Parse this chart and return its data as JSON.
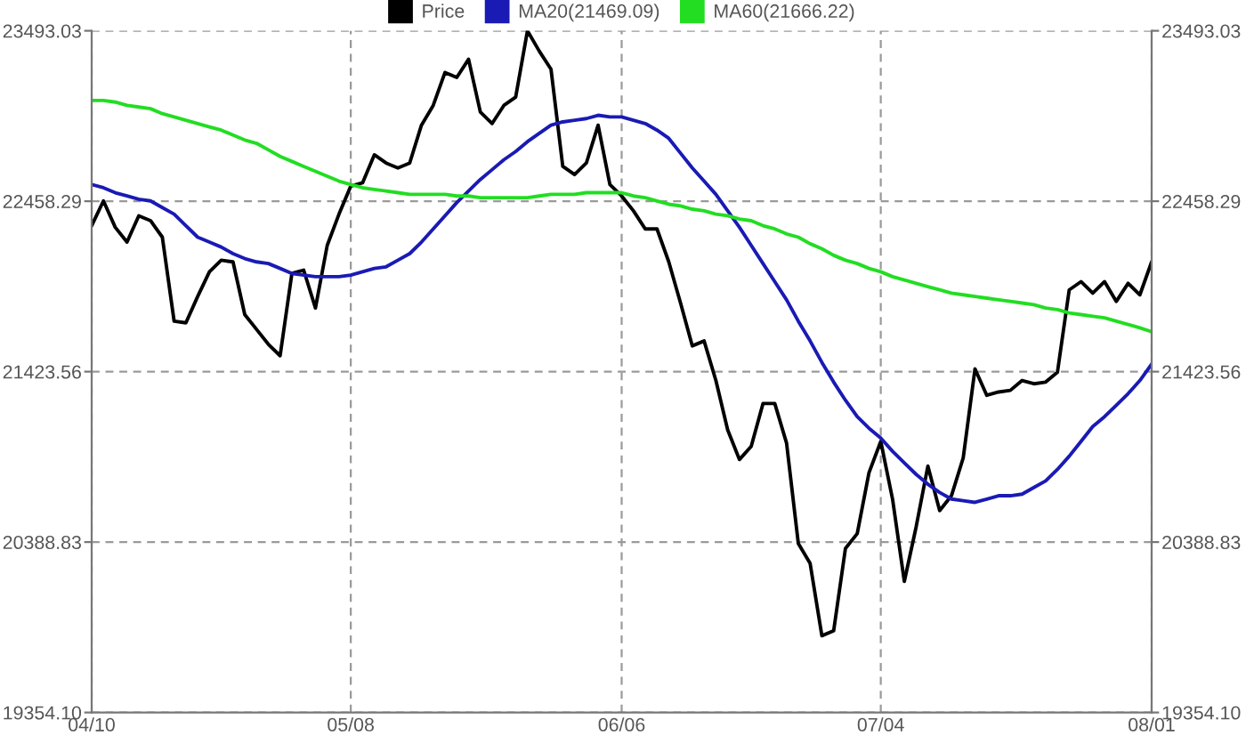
{
  "chart_data": {
    "type": "line",
    "categories": [
      "04/10",
      null,
      null,
      null,
      null,
      null,
      null,
      null,
      null,
      null,
      null,
      null,
      null,
      null,
      null,
      null,
      null,
      null,
      null,
      null,
      null,
      null,
      "05/08",
      null,
      null,
      null,
      null,
      null,
      null,
      null,
      null,
      null,
      null,
      null,
      null,
      null,
      null,
      null,
      null,
      null,
      null,
      null,
      null,
      null,
      null,
      "06/06",
      null,
      null,
      null,
      null,
      null,
      null,
      null,
      null,
      null,
      null,
      null,
      null,
      null,
      null,
      null,
      null,
      null,
      null,
      null,
      null,
      null,
      "07/04",
      null,
      null,
      null,
      null,
      null,
      null,
      null,
      null,
      null,
      null,
      null,
      null,
      null,
      null,
      null,
      null,
      null,
      null,
      null,
      null,
      null,
      null,
      "08/01"
    ],
    "series": [
      {
        "name": "Price",
        "color": "#000000",
        "values": [
          22310,
          22460,
          22300,
          22210,
          22370,
          22340,
          22240,
          21730,
          21720,
          21880,
          22030,
          22100,
          22090,
          21770,
          21680,
          21590,
          21520,
          22020,
          22040,
          21810,
          22190,
          22380,
          22550,
          22570,
          22740,
          22690,
          22660,
          22690,
          22920,
          23040,
          23240,
          23210,
          23320,
          23000,
          22930,
          23040,
          23090,
          23493.03,
          23370,
          23260,
          22670,
          22620,
          22690,
          22920,
          22560,
          22490,
          22400,
          22290,
          22290,
          22090,
          21840,
          21580,
          21610,
          21370,
          21070,
          20890,
          20970,
          21230,
          21230,
          20990,
          20380,
          20260,
          19820,
          19850,
          20350,
          20440,
          20810,
          21000,
          20650,
          20150,
          20480,
          20850,
          20580,
          20670,
          20900,
          21440,
          21280,
          21300,
          21310,
          21370,
          21350,
          21360,
          21420,
          21920,
          21970,
          21900,
          21970,
          21850,
          21960,
          21890,
          22090
        ]
      },
      {
        "name": "MA20(21469.09)",
        "color": "#1a1ab4",
        "values": [
          22560,
          22540,
          22510,
          22490,
          22470,
          22460,
          22420,
          22380,
          22310,
          22240,
          22210,
          22180,
          22140,
          22110,
          22090,
          22080,
          22050,
          22020,
          22010,
          22000,
          22000,
          22000,
          22010,
          22030,
          22050,
          22060,
          22100,
          22140,
          22210,
          22290,
          22370,
          22450,
          22520,
          22590,
          22650,
          22710,
          22760,
          22820,
          22870,
          22920,
          22940,
          22950,
          22960,
          22980,
          22970,
          22970,
          22950,
          22930,
          22890,
          22840,
          22750,
          22660,
          22580,
          22500,
          22400,
          22300,
          22190,
          22080,
          21970,
          21860,
          21730,
          21610,
          21480,
          21360,
          21250,
          21150,
          21080,
          21020,
          20940,
          20870,
          20800,
          20740,
          20690,
          20650,
          20640,
          20630,
          20650,
          20670,
          20670,
          20680,
          20720,
          20760,
          20830,
          20910,
          21000,
          21090,
          21150,
          21220,
          21290,
          21370,
          21469.09
        ]
      },
      {
        "name": "MA60(21666.22)",
        "color": "#22dd22",
        "values": [
          23070,
          23070,
          23060,
          23040,
          23030,
          23020,
          22990,
          22970,
          22950,
          22930,
          22910,
          22890,
          22860,
          22830,
          22810,
          22770,
          22730,
          22700,
          22670,
          22640,
          22610,
          22580,
          22560,
          22540,
          22530,
          22520,
          22510,
          22500,
          22500,
          22500,
          22500,
          22490,
          22490,
          22480,
          22480,
          22480,
          22480,
          22480,
          22490,
          22500,
          22500,
          22500,
          22510,
          22510,
          22510,
          22510,
          22490,
          22480,
          22460,
          22440,
          22430,
          22410,
          22400,
          22380,
          22370,
          22350,
          22340,
          22310,
          22290,
          22260,
          22240,
          22200,
          22170,
          22130,
          22100,
          22080,
          22050,
          22030,
          22000,
          21980,
          21960,
          21940,
          21920,
          21900,
          21890,
          21880,
          21870,
          21860,
          21850,
          21840,
          21830,
          21810,
          21800,
          21780,
          21770,
          21760,
          21750,
          21730,
          21710,
          21690,
          21666.22
        ]
      }
    ],
    "ylim": [
      19354.1,
      23493.03
    ],
    "yticks": [
      {
        "value": 19354.1,
        "label": "19354.10"
      },
      20388.83,
      21423.56,
      22458.29,
      23493.03
    ],
    "y2lim": [
      19354.1,
      23493.03
    ],
    "y2ticks": [
      {
        "value": 19354.1,
        "label": "19354.10"
      },
      20388.83,
      21423.56,
      22458.29,
      23493.03
    ],
    "grid": true,
    "legend": "top"
  }
}
